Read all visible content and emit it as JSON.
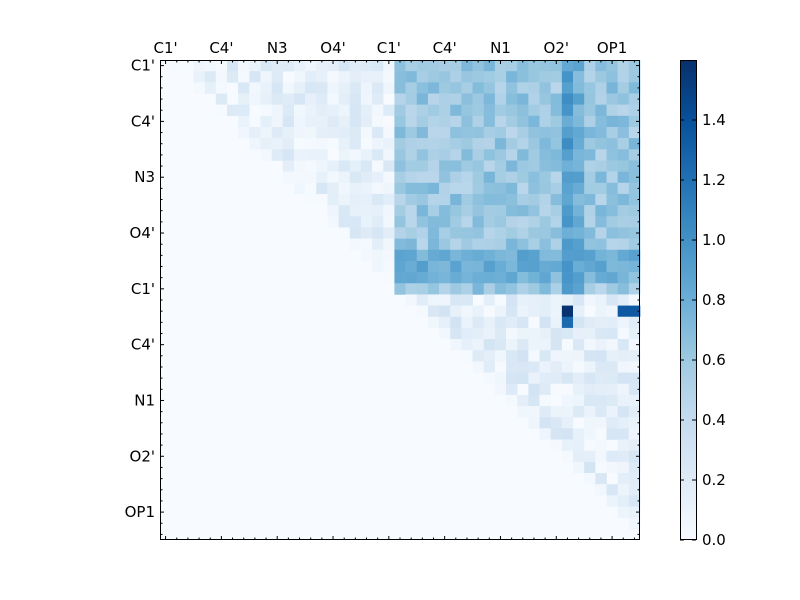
{
  "chart_data": {
    "type": "heatmap",
    "n": 43,
    "x_tick_labels": [
      "C1'",
      "C4'",
      "N3",
      "O4'",
      "C1'",
      "C4'",
      "N1",
      "O2'",
      "OP1"
    ],
    "y_tick_labels": [
      "C1'",
      "C4'",
      "N3",
      "O4'",
      "C1'",
      "C4'",
      "N1",
      "O2'",
      "OP1"
    ],
    "tick_every": 5,
    "colormap": "Blues",
    "colors": {
      "low": "#f7fbff",
      "high": "#08306b"
    },
    "color_range": [
      0.0,
      1.6
    ],
    "colorbar_ticks": [
      "0.0",
      "0.2",
      "0.4",
      "0.6",
      "0.8",
      "1.0",
      "1.2",
      "1.4"
    ],
    "colorbar_tick_values": [
      0.0,
      0.2,
      0.4,
      0.6,
      0.8,
      1.0,
      1.2,
      1.4
    ],
    "block_values": {
      "intra_first": 0.12,
      "inter": 0.6,
      "intra_second": 0.15
    },
    "hot_rows": [
      {
        "row": 17,
        "value": 0.8
      },
      {
        "row": 18,
        "value": 0.8
      },
      {
        "row": 19,
        "value": 0.75
      },
      {
        "row": 21,
        "value": 0.55
      },
      {
        "row": 22,
        "value": 1.15
      },
      {
        "row": 23,
        "value": 1.05
      }
    ],
    "hot_cols": [
      {
        "col": 36,
        "value": 0.9
      },
      {
        "col": 37,
        "value": 0.8
      }
    ],
    "peak_cells": [
      {
        "row": 22,
        "col": 36,
        "value": 1.58
      },
      {
        "row": 22,
        "col": 41,
        "value": 1.35
      },
      {
        "row": 22,
        "col": 42,
        "value": 1.35
      },
      {
        "row": 23,
        "col": 36,
        "value": 1.25
      }
    ]
  }
}
